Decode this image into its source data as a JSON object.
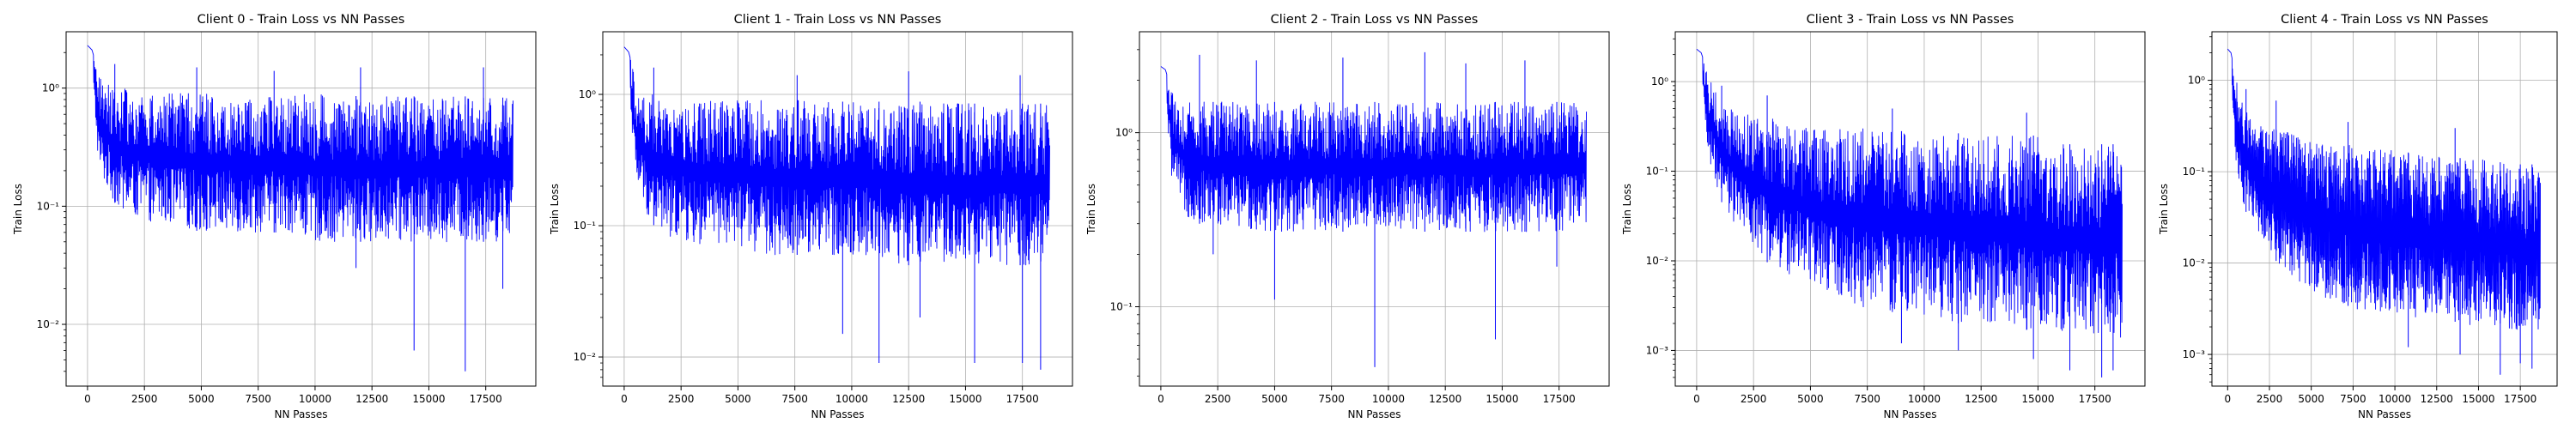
{
  "chart_data": [
    {
      "type": "line",
      "title": "Client 0 - Train Loss vs NN Passes",
      "xlabel": "NN Passes",
      "ylabel": "Train Loss",
      "yscale": "log",
      "xlim": [
        -940,
        19700
      ],
      "ylim": [
        0.003,
        3.0
      ],
      "xticks": [
        0,
        2500,
        5000,
        7500,
        10000,
        12500,
        15000,
        17500
      ],
      "xtick_labels": [
        "0",
        "2500",
        "5000",
        "7500",
        "10000",
        "12500",
        "15000",
        "17500"
      ],
      "yticks": [
        0.01,
        0.1,
        1
      ],
      "ytick_labels": [
        "10⁻²",
        "10⁻¹",
        "10⁰"
      ],
      "grid": true,
      "color": "#0000ff",
      "series": [
        {
          "x": [
            0,
            200,
            500,
            1000,
            1500,
            2000,
            2500,
            3000,
            4000,
            5000,
            6000,
            7000,
            8000,
            9000,
            10000,
            11000,
            12000,
            13000,
            14000,
            15000,
            16000,
            17000,
            18000,
            18700
          ],
          "upper": [
            2.3,
            2.1,
            1.3,
            1.1,
            1.0,
            0.95,
            0.95,
            0.9,
            0.9,
            0.9,
            0.9,
            0.9,
            0.88,
            0.88,
            0.88,
            0.88,
            0.85,
            0.85,
            0.85,
            0.85,
            0.85,
            0.85,
            0.85,
            0.8
          ],
          "lower": [
            2.2,
            1.4,
            0.2,
            0.12,
            0.09,
            0.08,
            0.08,
            0.07,
            0.07,
            0.06,
            0.06,
            0.06,
            0.06,
            0.06,
            0.05,
            0.05,
            0.05,
            0.05,
            0.05,
            0.05,
            0.05,
            0.05,
            0.05,
            0.06
          ],
          "spikes_up": [
            [
              1200,
              1.6
            ],
            [
              4800,
              1.5
            ],
            [
              8200,
              1.4
            ],
            [
              12000,
              1.5
            ],
            [
              17400,
              1.5
            ]
          ],
          "spikes_down": [
            [
              14350,
              0.006
            ],
            [
              16600,
              0.004
            ],
            [
              18250,
              0.02
            ],
            [
              11800,
              0.03
            ]
          ]
        }
      ]
    },
    {
      "type": "line",
      "title": "Client 1 - Train Loss vs NN Passes",
      "xlabel": "NN Passes",
      "ylabel": "Train Loss",
      "yscale": "log",
      "xlim": [
        -940,
        19700
      ],
      "ylim": [
        0.006,
        3.0
      ],
      "xticks": [
        0,
        2500,
        5000,
        7500,
        10000,
        12500,
        15000,
        17500
      ],
      "xtick_labels": [
        "0",
        "2500",
        "5000",
        "7500",
        "10000",
        "12500",
        "15000",
        "17500"
      ],
      "yticks": [
        0.01,
        0.1,
        1
      ],
      "ytick_labels": [
        "10⁻²",
        "10⁻¹",
        "10⁰"
      ],
      "grid": true,
      "color": "#0000ff",
      "series": [
        {
          "x": [
            0,
            200,
            500,
            1000,
            1500,
            2000,
            2500,
            3000,
            4000,
            5000,
            6000,
            7000,
            8000,
            9000,
            10000,
            11000,
            12000,
            13000,
            14000,
            15000,
            16000,
            17000,
            18000,
            18700
          ],
          "upper": [
            2.3,
            2.1,
            1.3,
            1.05,
            1.0,
            0.95,
            0.95,
            0.9,
            0.9,
            0.9,
            0.9,
            0.9,
            0.9,
            0.88,
            0.88,
            0.88,
            0.88,
            0.88,
            0.85,
            0.85,
            0.85,
            0.85,
            0.85,
            0.85
          ],
          "lower": [
            2.2,
            1.4,
            0.2,
            0.12,
            0.09,
            0.08,
            0.08,
            0.07,
            0.07,
            0.07,
            0.06,
            0.06,
            0.06,
            0.06,
            0.06,
            0.06,
            0.05,
            0.05,
            0.05,
            0.05,
            0.05,
            0.05,
            0.05,
            0.05
          ],
          "spikes_up": [
            [
              1300,
              1.6
            ],
            [
              7600,
              1.4
            ],
            [
              12500,
              1.5
            ],
            [
              17400,
              1.4
            ]
          ],
          "spikes_down": [
            [
              9600,
              0.015
            ],
            [
              11200,
              0.009
            ],
            [
              15400,
              0.009
            ],
            [
              17500,
              0.009
            ],
            [
              18300,
              0.008
            ],
            [
              13000,
              0.02
            ]
          ]
        }
      ]
    },
    {
      "type": "line",
      "title": "Client 2 - Train Loss vs NN Passes",
      "xlabel": "NN Passes",
      "ylabel": "Train Loss",
      "yscale": "log",
      "xlim": [
        -940,
        19700
      ],
      "ylim": [
        0.035,
        3.8
      ],
      "xticks": [
        0,
        2500,
        5000,
        7500,
        10000,
        12500,
        15000,
        17500
      ],
      "xtick_labels": [
        "0",
        "2500",
        "5000",
        "7500",
        "10000",
        "12500",
        "15000",
        "17500"
      ],
      "yticks": [
        0.1,
        1
      ],
      "ytick_labels": [
        "10⁻¹",
        "10⁰"
      ],
      "grid": true,
      "color": "#0000ff",
      "series": [
        {
          "x": [
            0,
            200,
            500,
            1000,
            1500,
            2000,
            2500,
            3000,
            4000,
            5000,
            6000,
            7000,
            8000,
            9000,
            10000,
            11000,
            12000,
            13000,
            14000,
            15000,
            16000,
            17000,
            18000,
            18700
          ],
          "upper": [
            2.4,
            2.3,
            1.7,
            1.55,
            1.5,
            1.5,
            1.5,
            1.5,
            1.5,
            1.5,
            1.5,
            1.5,
            1.5,
            1.5,
            1.5,
            1.5,
            1.5,
            1.5,
            1.5,
            1.5,
            1.5,
            1.5,
            1.5,
            1.45
          ],
          "lower": [
            2.3,
            1.6,
            0.5,
            0.35,
            0.3,
            0.3,
            0.28,
            0.28,
            0.28,
            0.27,
            0.27,
            0.27,
            0.27,
            0.27,
            0.27,
            0.27,
            0.27,
            0.27,
            0.27,
            0.27,
            0.27,
            0.27,
            0.27,
            0.3
          ],
          "spikes_up": [
            [
              1700,
              2.8
            ],
            [
              4200,
              2.6
            ],
            [
              8000,
              2.7
            ],
            [
              11600,
              2.9
            ],
            [
              13400,
              2.5
            ],
            [
              16000,
              2.6
            ]
          ],
          "spikes_down": [
            [
              5000,
              0.11
            ],
            [
              9400,
              0.045
            ],
            [
              14700,
              0.065
            ],
            [
              17400,
              0.17
            ],
            [
              2300,
              0.2
            ]
          ]
        }
      ]
    },
    {
      "type": "line",
      "title": "Client 3 - Train Loss vs NN Passes",
      "xlabel": "NN Passes",
      "ylabel": "Train Loss",
      "yscale": "log",
      "xlim": [
        -940,
        19700
      ],
      "ylim": [
        0.0004,
        3.6
      ],
      "xticks": [
        0,
        2500,
        5000,
        7500,
        10000,
        12500,
        15000,
        17500
      ],
      "xtick_labels": [
        "0",
        "2500",
        "5000",
        "7500",
        "10000",
        "12500",
        "15000",
        "17500"
      ],
      "yticks": [
        0.001,
        0.01,
        0.1,
        1
      ],
      "ytick_labels": [
        "10⁻³",
        "10⁻²",
        "10⁻¹",
        "10⁰"
      ],
      "grid": true,
      "color": "#0000ff",
      "series": [
        {
          "x": [
            0,
            200,
            500,
            1000,
            1500,
            2000,
            2500,
            3000,
            4000,
            5000,
            6000,
            7000,
            8000,
            9000,
            10000,
            11000,
            12000,
            13000,
            14000,
            15000,
            16000,
            17000,
            18000,
            18700
          ],
          "upper": [
            2.3,
            2.1,
            1.2,
            0.6,
            0.5,
            0.45,
            0.4,
            0.4,
            0.35,
            0.3,
            0.3,
            0.3,
            0.3,
            0.28,
            0.28,
            0.28,
            0.25,
            0.25,
            0.25,
            0.25,
            0.2,
            0.2,
            0.2,
            0.2
          ],
          "lower": [
            2.2,
            1.0,
            0.15,
            0.05,
            0.03,
            0.02,
            0.015,
            0.01,
            0.007,
            0.005,
            0.004,
            0.003,
            0.003,
            0.0025,
            0.0025,
            0.002,
            0.002,
            0.002,
            0.0018,
            0.0016,
            0.0015,
            0.0015,
            0.0014,
            0.0014
          ],
          "spikes_up": [
            [
              1100,
              0.9
            ],
            [
              3100,
              0.7
            ],
            [
              8600,
              0.5
            ],
            [
              14500,
              0.45
            ]
          ],
          "spikes_down": [
            [
              9000,
              0.0012
            ],
            [
              11500,
              0.001
            ],
            [
              14800,
              0.0008
            ],
            [
              16400,
              0.0006
            ],
            [
              17800,
              0.0005
            ],
            [
              18300,
              0.0006
            ]
          ]
        }
      ]
    },
    {
      "type": "line",
      "title": "Client 4 - Train Loss vs NN Passes",
      "xlabel": "NN Passes",
      "ylabel": "Train Loss",
      "yscale": "log",
      "xlim": [
        -940,
        19700
      ],
      "ylim": [
        0.00045,
        3.4
      ],
      "xticks": [
        0,
        2500,
        5000,
        7500,
        10000,
        12500,
        15000,
        17500
      ],
      "xtick_labels": [
        "0",
        "2500",
        "5000",
        "7500",
        "10000",
        "12500",
        "15000",
        "17500"
      ],
      "yticks": [
        0.001,
        0.01,
        0.1,
        1
      ],
      "ytick_labels": [
        "10⁻³",
        "10⁻²",
        "10⁻¹",
        "10⁰"
      ],
      "grid": true,
      "color": "#0000ff",
      "series": [
        {
          "x": [
            0,
            200,
            500,
            1000,
            1500,
            2000,
            2500,
            3000,
            4000,
            5000,
            6000,
            7000,
            8000,
            9000,
            10000,
            11000,
            12000,
            13000,
            14000,
            15000,
            16000,
            17000,
            18000,
            18700
          ],
          "upper": [
            2.2,
            2.0,
            1.0,
            0.5,
            0.4,
            0.35,
            0.3,
            0.3,
            0.25,
            0.22,
            0.2,
            0.2,
            0.18,
            0.18,
            0.17,
            0.16,
            0.15,
            0.15,
            0.14,
            0.14,
            0.13,
            0.12,
            0.12,
            0.12
          ],
          "lower": [
            2.1,
            1.0,
            0.12,
            0.04,
            0.025,
            0.018,
            0.013,
            0.01,
            0.007,
            0.005,
            0.004,
            0.0035,
            0.003,
            0.003,
            0.0028,
            0.0025,
            0.0025,
            0.0024,
            0.0022,
            0.002,
            0.002,
            0.0019,
            0.0018,
            0.0018
          ],
          "spikes_up": [
            [
              1100,
              0.8
            ],
            [
              2900,
              0.6
            ],
            [
              7200,
              0.35
            ],
            [
              13600,
              0.3
            ]
          ],
          "spikes_down": [
            [
              10800,
              0.0012
            ],
            [
              13900,
              0.001
            ],
            [
              16300,
              0.0006
            ],
            [
              17500,
              0.0008
            ],
            [
              18200,
              0.0007
            ]
          ]
        }
      ]
    }
  ]
}
